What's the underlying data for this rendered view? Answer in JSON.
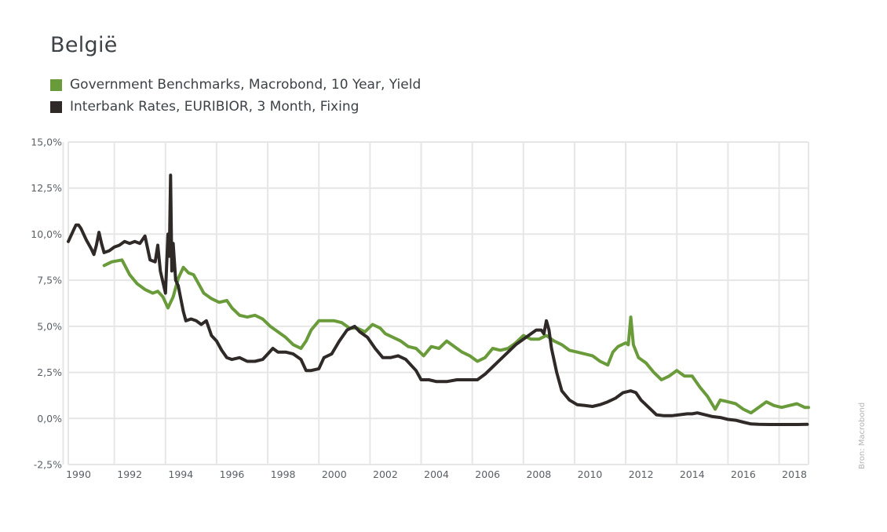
{
  "source": "Bron: Macrobond",
  "colors": {
    "government": "#6a9b3a",
    "interbank": "#2f2a28",
    "grid": "#e6e6e6"
  },
  "chart_data": {
    "type": "line",
    "title": "België",
    "xlabel": "",
    "ylabel": "",
    "xlim": [
      1989.6,
      2018.55
    ],
    "ylim": [
      -2.5,
      15.0
    ],
    "y_ticks": [
      "-2,5%",
      "0,0%",
      "2,5%",
      "5,0%",
      "7,5%",
      "10,0%",
      "12,5%",
      "15,0%"
    ],
    "x_ticks": [
      "1990",
      "1992",
      "1994",
      "1996",
      "1998",
      "2000",
      "2002",
      "2004",
      "2006",
      "2008",
      "2010",
      "2012",
      "2014",
      "2016",
      "2018"
    ],
    "grid": true,
    "legend_position": "top-left",
    "series": [
      {
        "name": "Government Benchmarks, Macrobond, 10 Year, Yield",
        "color": "#6a9b3a",
        "points": [
          [
            1991.0,
            8.3
          ],
          [
            1991.3,
            8.5
          ],
          [
            1991.7,
            8.6
          ],
          [
            1992.0,
            7.8
          ],
          [
            1992.3,
            7.3
          ],
          [
            1992.6,
            7.0
          ],
          [
            1992.9,
            6.8
          ],
          [
            1993.1,
            6.9
          ],
          [
            1993.3,
            6.6
          ],
          [
            1993.5,
            6.0
          ],
          [
            1993.7,
            6.6
          ],
          [
            1993.9,
            7.6
          ],
          [
            1994.1,
            8.2
          ],
          [
            1994.3,
            7.9
          ],
          [
            1994.5,
            7.8
          ],
          [
            1994.7,
            7.3
          ],
          [
            1994.9,
            6.8
          ],
          [
            1995.2,
            6.5
          ],
          [
            1995.5,
            6.3
          ],
          [
            1995.8,
            6.4
          ],
          [
            1996.0,
            6.0
          ],
          [
            1996.3,
            5.6
          ],
          [
            1996.6,
            5.5
          ],
          [
            1996.9,
            5.6
          ],
          [
            1997.2,
            5.4
          ],
          [
            1997.5,
            5.0
          ],
          [
            1997.8,
            4.7
          ],
          [
            1998.1,
            4.4
          ],
          [
            1998.4,
            4.0
          ],
          [
            1998.7,
            3.8
          ],
          [
            1998.9,
            4.2
          ],
          [
            1999.1,
            4.8
          ],
          [
            1999.4,
            5.3
          ],
          [
            1999.7,
            5.3
          ],
          [
            2000.0,
            5.3
          ],
          [
            2000.3,
            5.2
          ],
          [
            2000.6,
            4.9
          ],
          [
            2000.9,
            4.9
          ],
          [
            2001.2,
            4.7
          ],
          [
            2001.5,
            5.1
          ],
          [
            2001.8,
            4.9
          ],
          [
            2002.0,
            4.6
          ],
          [
            2002.3,
            4.4
          ],
          [
            2002.6,
            4.2
          ],
          [
            2002.9,
            3.9
          ],
          [
            2003.2,
            3.8
          ],
          [
            2003.5,
            3.4
          ],
          [
            2003.8,
            3.9
          ],
          [
            2004.1,
            3.8
          ],
          [
            2004.4,
            4.2
          ],
          [
            2004.7,
            3.9
          ],
          [
            2005.0,
            3.6
          ],
          [
            2005.3,
            3.4
          ],
          [
            2005.6,
            3.1
          ],
          [
            2005.9,
            3.3
          ],
          [
            2006.2,
            3.8
          ],
          [
            2006.5,
            3.7
          ],
          [
            2006.8,
            3.8
          ],
          [
            2007.1,
            4.1
          ],
          [
            2007.4,
            4.5
          ],
          [
            2007.7,
            4.3
          ],
          [
            2008.0,
            4.3
          ],
          [
            2008.3,
            4.5
          ],
          [
            2008.6,
            4.2
          ],
          [
            2008.9,
            4.0
          ],
          [
            2009.2,
            3.7
          ],
          [
            2009.5,
            3.6
          ],
          [
            2009.8,
            3.5
          ],
          [
            2010.1,
            3.4
          ],
          [
            2010.4,
            3.1
          ],
          [
            2010.7,
            2.9
          ],
          [
            2010.9,
            3.6
          ],
          [
            2011.1,
            3.9
          ],
          [
            2011.4,
            4.1
          ],
          [
            2011.5,
            4.0
          ],
          [
            2011.6,
            5.5
          ],
          [
            2011.7,
            4.0
          ],
          [
            2011.9,
            3.3
          ],
          [
            2012.2,
            3.0
          ],
          [
            2012.5,
            2.5
          ],
          [
            2012.8,
            2.1
          ],
          [
            2013.1,
            2.3
          ],
          [
            2013.4,
            2.6
          ],
          [
            2013.7,
            2.3
          ],
          [
            2014.0,
            2.3
          ],
          [
            2014.3,
            1.7
          ],
          [
            2014.6,
            1.2
          ],
          [
            2014.9,
            0.5
          ],
          [
            2015.1,
            1.0
          ],
          [
            2015.4,
            0.9
          ],
          [
            2015.7,
            0.8
          ],
          [
            2016.0,
            0.5
          ],
          [
            2016.3,
            0.3
          ],
          [
            2016.6,
            0.6
          ],
          [
            2016.9,
            0.9
          ],
          [
            2017.2,
            0.7
          ],
          [
            2017.5,
            0.6
          ],
          [
            2017.8,
            0.7
          ],
          [
            2018.1,
            0.8
          ],
          [
            2018.4,
            0.6
          ],
          [
            2018.55,
            0.6
          ]
        ]
      },
      {
        "name": "Interbank Rates, EURIBIOR, 3 Month, Fixing",
        "color": "#2f2a28",
        "points": [
          [
            1989.6,
            9.6
          ],
          [
            1989.8,
            10.2
          ],
          [
            1989.9,
            10.5
          ],
          [
            1990.0,
            10.5
          ],
          [
            1990.1,
            10.3
          ],
          [
            1990.3,
            9.7
          ],
          [
            1990.5,
            9.2
          ],
          [
            1990.6,
            8.9
          ],
          [
            1990.7,
            9.4
          ],
          [
            1990.8,
            10.1
          ],
          [
            1990.9,
            9.5
          ],
          [
            1991.0,
            9.0
          ],
          [
            1991.2,
            9.1
          ],
          [
            1991.4,
            9.3
          ],
          [
            1991.6,
            9.4
          ],
          [
            1991.8,
            9.6
          ],
          [
            1992.0,
            9.5
          ],
          [
            1992.2,
            9.6
          ],
          [
            1992.4,
            9.5
          ],
          [
            1992.6,
            9.9
          ],
          [
            1992.8,
            8.6
          ],
          [
            1993.0,
            8.5
          ],
          [
            1993.1,
            9.4
          ],
          [
            1993.2,
            8.0
          ],
          [
            1993.4,
            6.8
          ],
          [
            1993.5,
            10.0
          ],
          [
            1993.55,
            8.8
          ],
          [
            1993.6,
            13.2
          ],
          [
            1993.65,
            8.0
          ],
          [
            1993.7,
            9.5
          ],
          [
            1993.8,
            7.5
          ],
          [
            1993.9,
            7.2
          ],
          [
            1994.0,
            6.5
          ],
          [
            1994.1,
            5.8
          ],
          [
            1994.2,
            5.3
          ],
          [
            1994.4,
            5.4
          ],
          [
            1994.6,
            5.3
          ],
          [
            1994.8,
            5.1
          ],
          [
            1995.0,
            5.3
          ],
          [
            1995.2,
            4.5
          ],
          [
            1995.4,
            4.2
          ],
          [
            1995.6,
            3.7
          ],
          [
            1995.8,
            3.3
          ],
          [
            1996.0,
            3.2
          ],
          [
            1996.3,
            3.3
          ],
          [
            1996.6,
            3.1
          ],
          [
            1996.9,
            3.1
          ],
          [
            1997.2,
            3.2
          ],
          [
            1997.4,
            3.5
          ],
          [
            1997.6,
            3.8
          ],
          [
            1997.8,
            3.6
          ],
          [
            1998.1,
            3.6
          ],
          [
            1998.4,
            3.5
          ],
          [
            1998.7,
            3.2
          ],
          [
            1998.9,
            2.6
          ],
          [
            1999.1,
            2.6
          ],
          [
            1999.4,
            2.7
          ],
          [
            1999.6,
            3.3
          ],
          [
            1999.9,
            3.5
          ],
          [
            2000.2,
            4.2
          ],
          [
            2000.5,
            4.8
          ],
          [
            2000.8,
            5.0
          ],
          [
            2001.0,
            4.7
          ],
          [
            2001.3,
            4.4
          ],
          [
            2001.6,
            3.8
          ],
          [
            2001.9,
            3.3
          ],
          [
            2002.2,
            3.3
          ],
          [
            2002.5,
            3.4
          ],
          [
            2002.8,
            3.2
          ],
          [
            2003.0,
            2.9
          ],
          [
            2003.2,
            2.6
          ],
          [
            2003.4,
            2.1
          ],
          [
            2003.7,
            2.1
          ],
          [
            2004.0,
            2.0
          ],
          [
            2004.4,
            2.0
          ],
          [
            2004.8,
            2.1
          ],
          [
            2005.2,
            2.1
          ],
          [
            2005.6,
            2.1
          ],
          [
            2005.9,
            2.4
          ],
          [
            2006.2,
            2.8
          ],
          [
            2006.5,
            3.2
          ],
          [
            2006.8,
            3.6
          ],
          [
            2007.1,
            4.0
          ],
          [
            2007.4,
            4.3
          ],
          [
            2007.7,
            4.6
          ],
          [
            2007.9,
            4.8
          ],
          [
            2008.1,
            4.8
          ],
          [
            2008.2,
            4.6
          ],
          [
            2008.3,
            5.3
          ],
          [
            2008.4,
            4.8
          ],
          [
            2008.5,
            3.8
          ],
          [
            2008.7,
            2.5
          ],
          [
            2008.9,
            1.5
          ],
          [
            2009.2,
            1.0
          ],
          [
            2009.5,
            0.75
          ],
          [
            2009.8,
            0.7
          ],
          [
            2010.1,
            0.65
          ],
          [
            2010.4,
            0.75
          ],
          [
            2010.7,
            0.9
          ],
          [
            2011.0,
            1.1
          ],
          [
            2011.3,
            1.4
          ],
          [
            2011.6,
            1.5
          ],
          [
            2011.8,
            1.4
          ],
          [
            2012.0,
            1.0
          ],
          [
            2012.3,
            0.6
          ],
          [
            2012.6,
            0.2
          ],
          [
            2012.9,
            0.15
          ],
          [
            2013.2,
            0.15
          ],
          [
            2013.5,
            0.2
          ],
          [
            2013.8,
            0.25
          ],
          [
            2014.0,
            0.25
          ],
          [
            2014.2,
            0.3
          ],
          [
            2014.5,
            0.2
          ],
          [
            2014.8,
            0.1
          ],
          [
            2015.1,
            0.05
          ],
          [
            2015.4,
            -0.05
          ],
          [
            2015.7,
            -0.1
          ],
          [
            2016.0,
            -0.2
          ],
          [
            2016.3,
            -0.3
          ],
          [
            2016.6,
            -0.32
          ],
          [
            2017.0,
            -0.33
          ],
          [
            2017.5,
            -0.33
          ],
          [
            2018.0,
            -0.33
          ],
          [
            2018.5,
            -0.32
          ]
        ]
      }
    ]
  }
}
